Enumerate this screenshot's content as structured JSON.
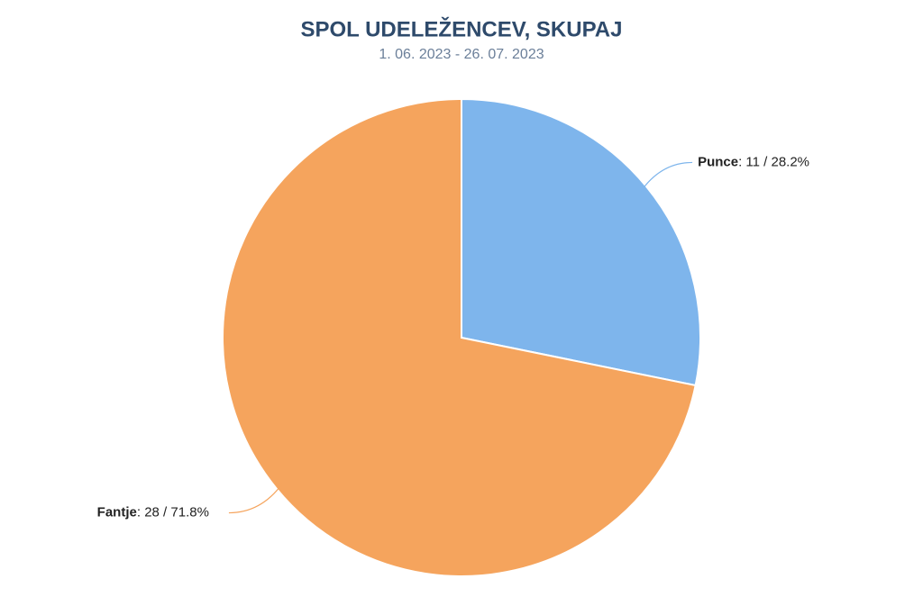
{
  "chart_data": {
    "type": "pie",
    "title": "SPOL UDELEŽENCEV, SKUPAJ",
    "subtitle": "1. 06. 2023 - 26. 07. 2023",
    "categories": [
      "Punce",
      "Fantje"
    ],
    "values": [
      11,
      28
    ],
    "value_labels": [
      ": 11 / 28.2%",
      ": 28 / 71.8%"
    ],
    "colors": [
      "#7eb5ec",
      "#f5a45d"
    ]
  }
}
